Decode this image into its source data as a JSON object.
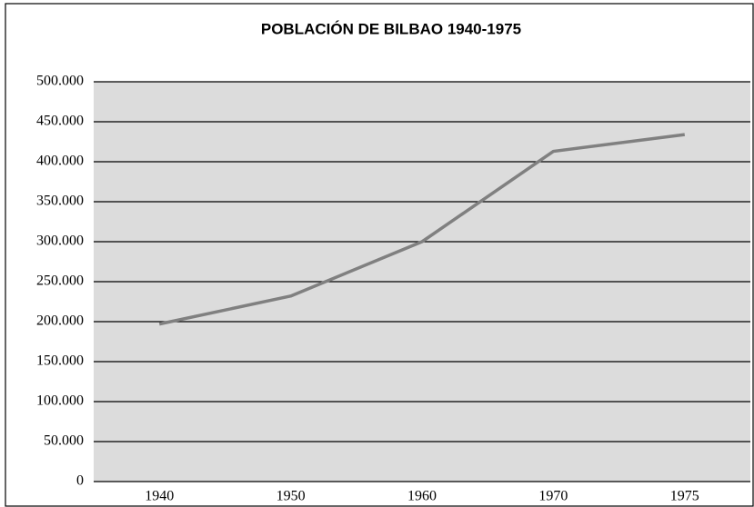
{
  "chart_data": {
    "type": "line",
    "title": "POBLACIÓN DE BILBAO 1940-1975",
    "categories": [
      "1940",
      "1950",
      "1960",
      "1970",
      "1975"
    ],
    "values": [
      197000,
      232000,
      300000,
      413000,
      434000
    ],
    "color": "#808080",
    "ylim": [
      0,
      500000
    ],
    "yticks": [
      0,
      {
        "value": 50000,
        "label": "50.000"
      },
      {
        "value": 100000,
        "label": "100.000"
      },
      {
        "value": 150000,
        "label": "150.000"
      },
      {
        "value": 200000,
        "label": "200.000"
      },
      {
        "value": 250000,
        "label": "250.000"
      },
      {
        "value": 300000,
        "label": "300.000"
      },
      {
        "value": 350000,
        "label": "350.000"
      },
      {
        "value": 400000,
        "label": "400.000"
      },
      {
        "value": 450000,
        "label": "450.000"
      },
      {
        "value": 500000,
        "label": "500.000"
      }
    ],
    "grid": true
  }
}
